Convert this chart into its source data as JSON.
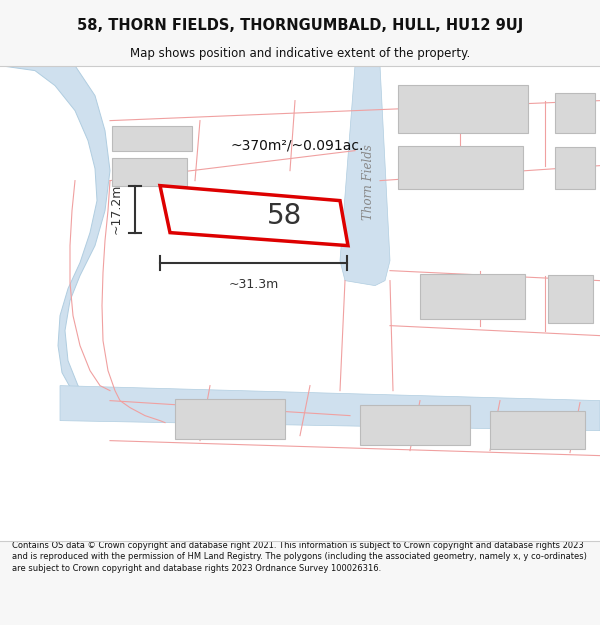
{
  "title": "58, THORN FIELDS, THORNGUMBALD, HULL, HU12 9UJ",
  "subtitle": "Map shows position and indicative extent of the property.",
  "footer": "Contains OS data © Crown copyright and database right 2021. This information is subject to Crown copyright and database rights 2023 and is reproduced with the permission of HM Land Registry. The polygons (including the associated geometry, namely x, y co-ordinates) are subject to Crown copyright and database rights 2023 Ordnance Survey 100026316.",
  "bg_color": "#f7f7f7",
  "map_bg": "#ffffff",
  "road_fill": "#cfe0ee",
  "road_outline": "#b0cde0",
  "plot_outline_color": "#dd0000",
  "plot_fill": "#ffffff",
  "plot_label": "58",
  "building_color": "#d8d8d8",
  "building_outline": "#bbbbbb",
  "street_label": "Thorn Fields",
  "dim_color": "#333333",
  "dim_width_label": "~31.3m",
  "dim_height_label": "~17.2m",
  "area_label": "~370m²/~0.091ac.",
  "street_line_color": "#f0a0a0",
  "street_fill_color": "#fce8e8"
}
